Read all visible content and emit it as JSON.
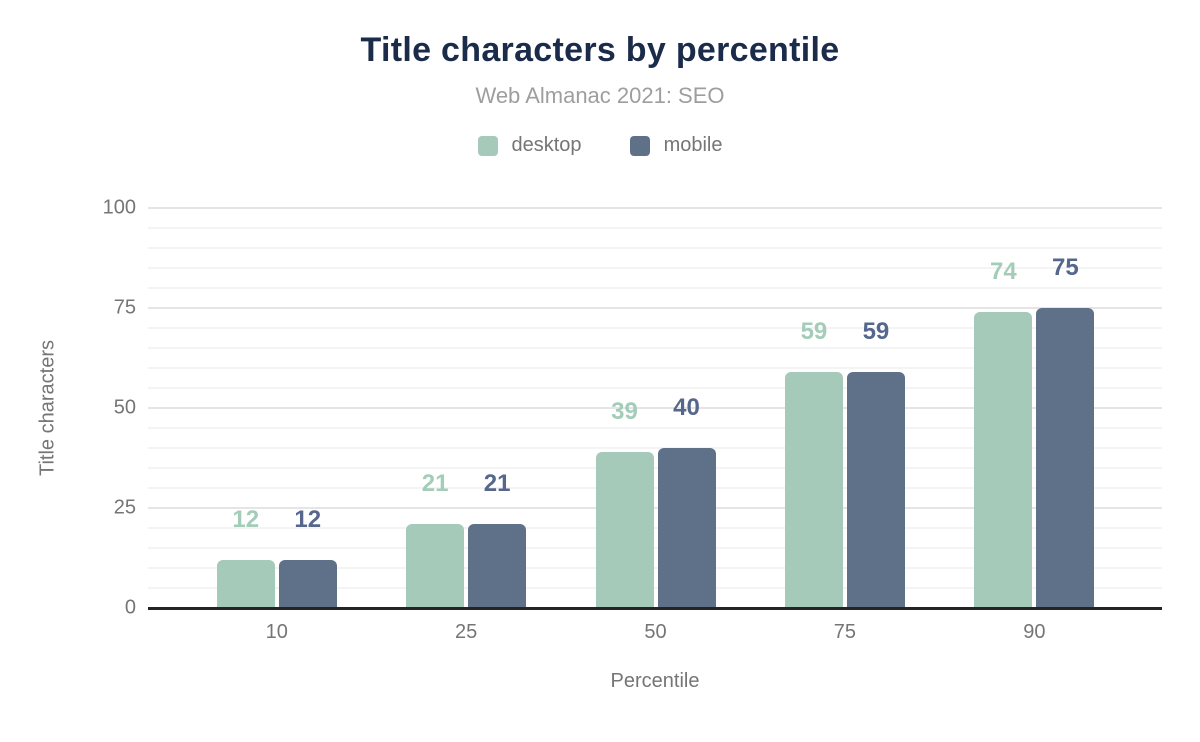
{
  "chart_data": {
    "type": "bar",
    "title": "Title characters by percentile",
    "subtitle": "Web Almanac 2021: SEO",
    "xlabel": "Percentile",
    "ylabel": "Title characters",
    "categories": [
      "10",
      "25",
      "50",
      "75",
      "90"
    ],
    "series": [
      {
        "name": "desktop",
        "color": "#a5cab9",
        "label_color": "#a3ccb9",
        "values": [
          12,
          21,
          39,
          59,
          74
        ]
      },
      {
        "name": "mobile",
        "color": "#5f7089",
        "label_color": "#55678d",
        "values": [
          12,
          21,
          40,
          59,
          75
        ]
      }
    ],
    "ylim": [
      0,
      100
    ],
    "yticks": [
      0,
      25,
      50,
      75,
      100
    ],
    "minor_tick_interval": 5,
    "major_tick_interval": 25,
    "grid": true,
    "legend_position": "top",
    "axis_line_color": "#222426",
    "title_color": "#1b2b4a",
    "text_color": "#757575"
  }
}
